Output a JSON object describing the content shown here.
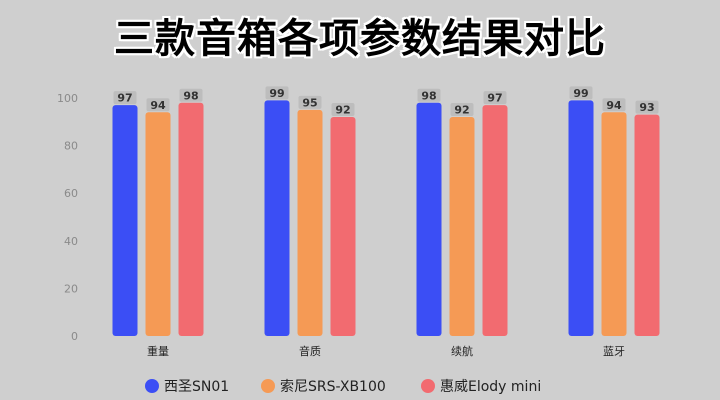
{
  "title": "三款音箱各项参数结果对比",
  "chart_data": {
    "type": "bar",
    "categories": [
      "重量",
      "音质",
      "续航",
      "蓝牙"
    ],
    "series": [
      {
        "name": "西圣SN01",
        "color": "#3b4ef5",
        "values": [
          97,
          99,
          98,
          99
        ]
      },
      {
        "name": "索尼SRS-XB100",
        "color": "#f59a55",
        "values": [
          94,
          95,
          92,
          94
        ]
      },
      {
        "name": "惠威Elody mini",
        "color": "#f26b70",
        "values": [
          98,
          92,
          97,
          93
        ]
      }
    ],
    "ylim": [
      0,
      100
    ],
    "yticks": [
      0,
      20,
      40,
      60,
      80,
      100
    ],
    "grid": false,
    "legend": "bottom"
  }
}
